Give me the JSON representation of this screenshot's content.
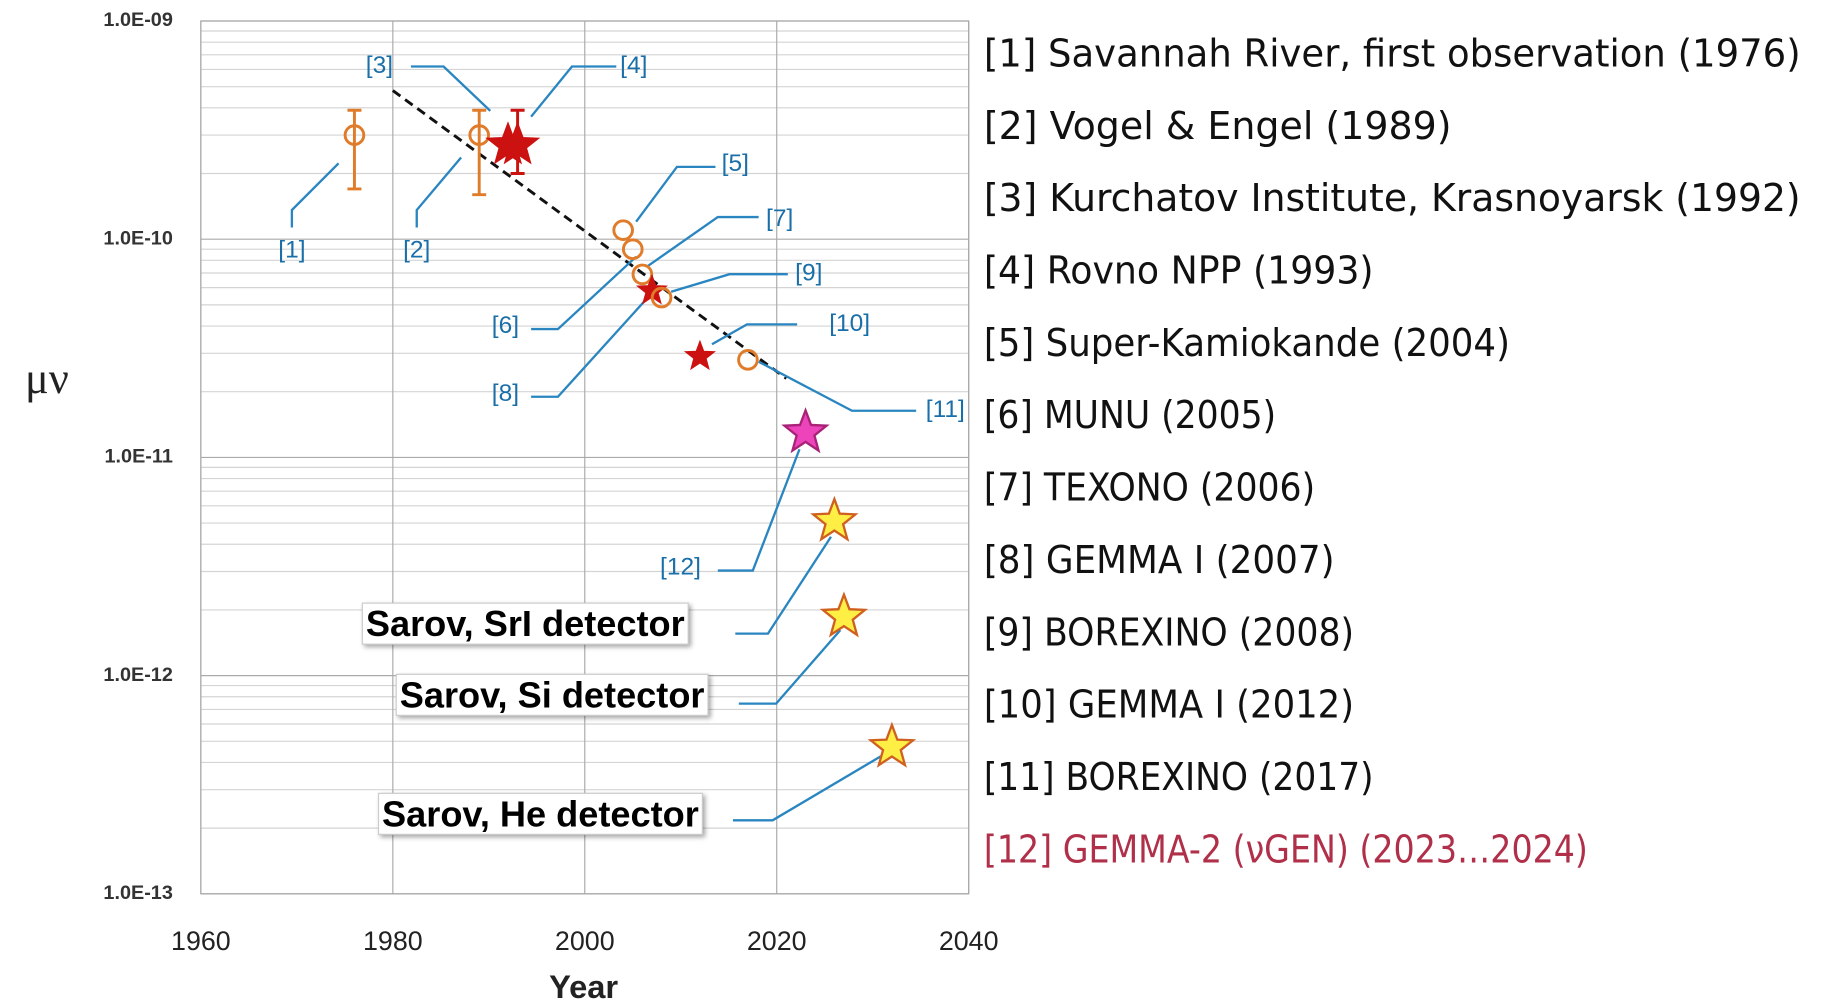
{
  "chart_data": {
    "type": "scatter",
    "x_label": "Year",
    "y_label": "μν",
    "log_y": true,
    "grid": true,
    "xlim": [
      1960,
      2040
    ],
    "xticks": [
      1960,
      1980,
      2000,
      2020,
      2040
    ],
    "ylim": [
      1e-13,
      1e-09
    ],
    "yticks": [
      {
        "value": 1e-13,
        "label": "1.0E-13"
      },
      {
        "value": 1e-12,
        "label": "1.0E-12"
      },
      {
        "value": 1e-11,
        "label": "1.0E-11"
      },
      {
        "value": 1e-10,
        "label": "1.0E-10"
      },
      {
        "value": 1e-09,
        "label": "1.0E-09"
      }
    ],
    "trend_line": {
      "color": "#111111",
      "x": [
        1980,
        2021
      ],
      "values": [
        4.8e-10,
        2.3e-11
      ]
    },
    "series": [
      {
        "name": "[1]",
        "marker": "circle",
        "color": "#e07b2a",
        "x": [
          1976
        ],
        "values": [
          3e-10
        ],
        "error_range": [
          1.7e-10,
          3.9e-10
        ]
      },
      {
        "name": "[2]",
        "marker": "circle",
        "color": "#e07b2a",
        "x": [
          1989
        ],
        "values": [
          3e-10
        ],
        "error_range": [
          1.6e-10,
          3.9e-10
        ]
      },
      {
        "name": "[3]",
        "marker": "star",
        "color": "#cc1111",
        "x": [
          1992
        ],
        "values": [
          2.7e-10
        ]
      },
      {
        "name": "[4]",
        "marker": "star",
        "color": "#cc1111",
        "x": [
          1993
        ],
        "values": [
          2.7e-10
        ],
        "error_range": [
          2e-10,
          3.9e-10
        ]
      },
      {
        "name": "[5]",
        "marker": "circle",
        "color": "#e07b2a",
        "x": [
          2004
        ],
        "values": [
          1.1e-10
        ]
      },
      {
        "name": "[6]",
        "marker": "circle",
        "color": "#e07b2a",
        "x": [
          2005
        ],
        "values": [
          9e-11
        ]
      },
      {
        "name": "[7]",
        "marker": "circle",
        "color": "#e07b2a",
        "x": [
          2006
        ],
        "values": [
          6.9e-11
        ]
      },
      {
        "name": "[8]",
        "marker": "star",
        "color": "#cc1111",
        "x": [
          2007
        ],
        "values": [
          5.8e-11
        ]
      },
      {
        "name": "[9]",
        "marker": "circle",
        "color": "#e07b2a",
        "x": [
          2008
        ],
        "values": [
          5.4e-11
        ]
      },
      {
        "name": "[10]",
        "marker": "star",
        "color": "#cc1111",
        "x": [
          2012
        ],
        "values": [
          2.9e-11
        ]
      },
      {
        "name": "[11]",
        "marker": "circle",
        "color": "#e07b2a",
        "x": [
          2017
        ],
        "values": [
          2.8e-11
        ]
      },
      {
        "name": "[12]",
        "marker": "star",
        "color": "#ee44bb",
        "x": [
          2023
        ],
        "values": [
          1.3e-11
        ]
      },
      {
        "name": "Sarov, SrI detector",
        "marker": "star",
        "color": "#ffee44",
        "x": [
          2026
        ],
        "values": [
          5.1e-12
        ]
      },
      {
        "name": "Sarov, Si detector",
        "marker": "star",
        "color": "#ffee44",
        "x": [
          2027
        ],
        "values": [
          1.86e-12
        ]
      },
      {
        "name": "Sarov, He detector",
        "marker": "star",
        "color": "#ffee44",
        "x": [
          2032
        ],
        "values": [
          4.7e-13
        ]
      }
    ],
    "references": [
      {
        "text": "[1] Savannah River, first observation (1976)",
        "color": "#111111"
      },
      {
        "text": "[2] Vogel & Engel (1989)",
        "color": "#111111"
      },
      {
        "text": "[3] Kurchatov Institute, Krasnoyarsk (1992)",
        "color": "#111111"
      },
      {
        "text": "[4] Rovno NPP (1993)",
        "color": "#111111"
      },
      {
        "text": "[5] Super-Kamiokande (2004)",
        "color": "#111111"
      },
      {
        "text": "[6] MUNU (2005)",
        "color": "#111111"
      },
      {
        "text": "[7] TEXONO (2006)",
        "color": "#111111"
      },
      {
        "text": "[8] GEMMA I (2007)",
        "color": "#111111"
      },
      {
        "text": "[9] BOREXINO (2008)",
        "color": "#111111"
      },
      {
        "text": "[10] GEMMA I (2012)",
        "color": "#111111"
      },
      {
        "text": "[11] BOREXINO (2017)",
        "color": "#111111"
      },
      {
        "text": "[12] GEMMA-2 (νGEN) (2023…2024)",
        "color": "#b0304a"
      }
    ]
  }
}
